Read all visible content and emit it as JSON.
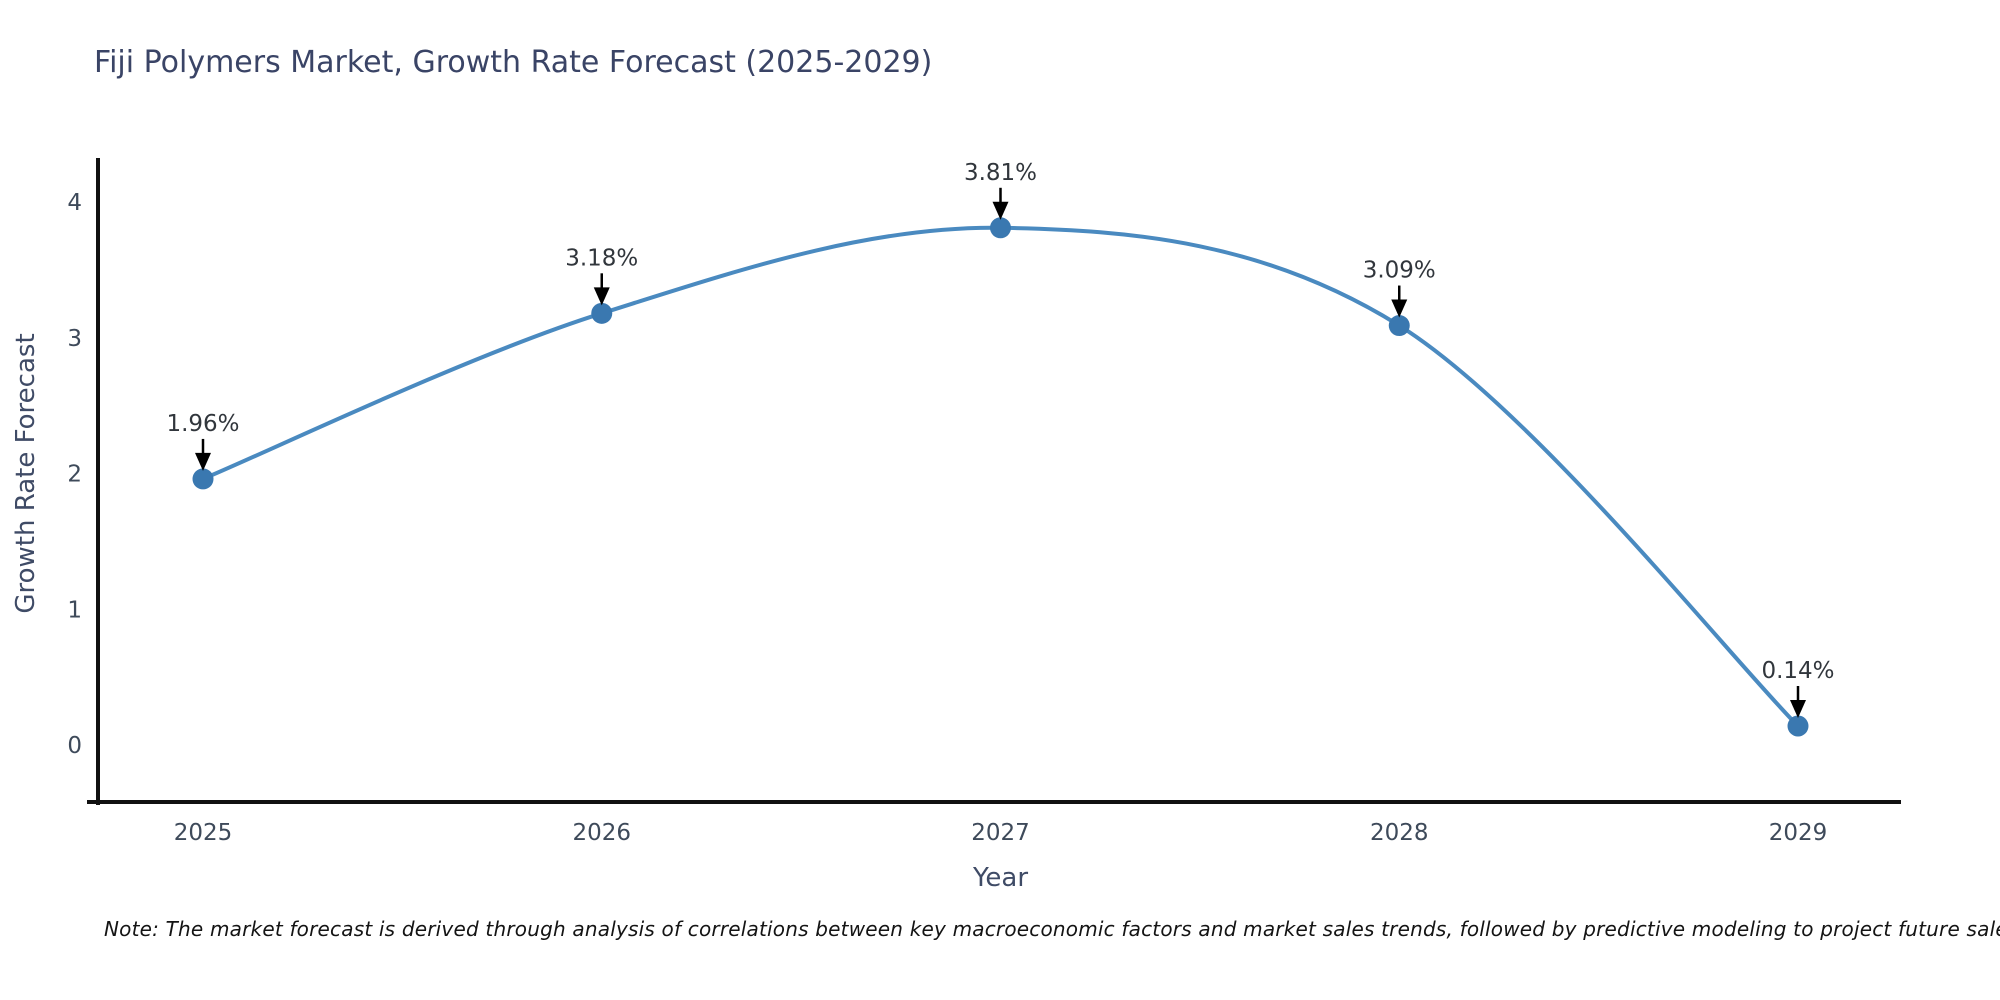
{
  "title": "Fiji Polymers Market, Growth Rate Forecast (2025-2029)",
  "note": "Note: The market forecast is derived through analysis of correlations between key macroeconomic factors and market sales trends, followed by predictive modeling to project future sales.",
  "chart_data": {
    "type": "line",
    "title": "Fiji Polymers Market, Growth Rate Forecast (2025-2029)",
    "xlabel": "Year",
    "ylabel": "Growth Rate Forecast",
    "categories": [
      "2025",
      "2026",
      "2027",
      "2028",
      "2029"
    ],
    "values": [
      1.96,
      3.18,
      3.81,
      3.09,
      0.14
    ],
    "data_labels": [
      "1.96%",
      "3.18%",
      "3.81%",
      "3.09%",
      "0.14%"
    ],
    "yticks": [
      0,
      1,
      2,
      3,
      4
    ],
    "ylim": [
      -0.43,
      4.32
    ],
    "line_shape": "spline",
    "grid": false,
    "legend_position": "none",
    "annotations_style": "value label with downward black arrow to marker",
    "colors": {
      "line": "#4a8ac0",
      "marker": "#3a78b0",
      "axis": "#111111",
      "tick_label": "#3e4a5a",
      "axis_label": "#3f4b66",
      "title": "#3a4466",
      "annotation_text": "#31363c",
      "arrow": "#000000",
      "background": "#ffffff"
    }
  }
}
